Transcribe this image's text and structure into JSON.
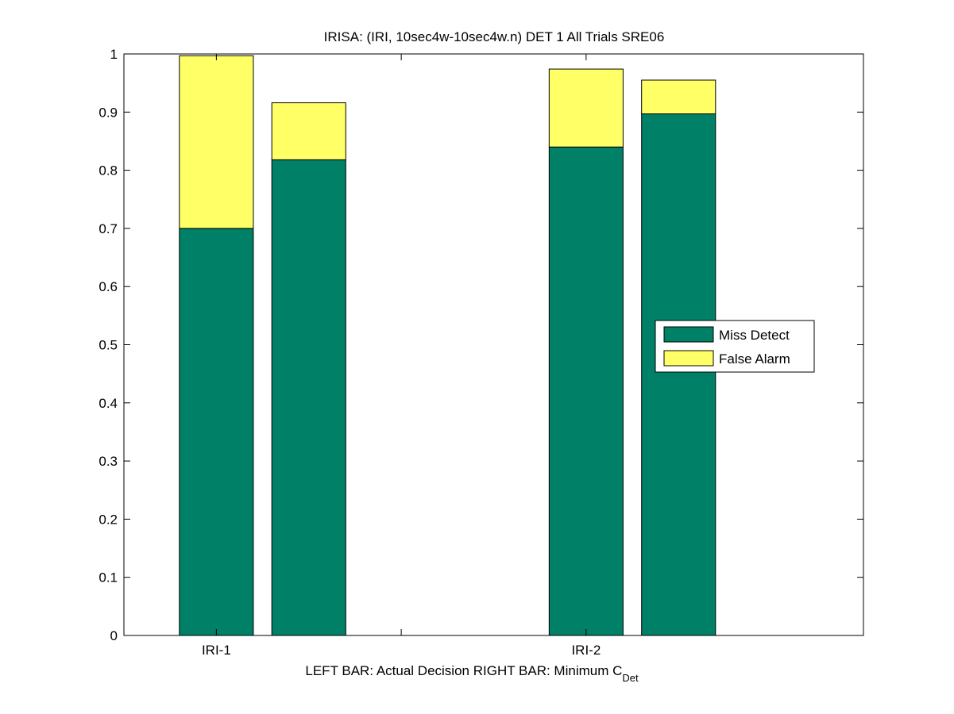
{
  "chart_data": {
    "type": "bar",
    "stacked": true,
    "title": "IRISA: (IRI, 10sec4w-10sec4w.n) DET 1 All Trials SRE06",
    "xlabel": {
      "main": "LEFT BAR: Actual Decision     RIGHT BAR: Minimum C",
      "subscript": "Det"
    },
    "ylabel": "",
    "ylim": [
      0,
      1
    ],
    "xlim": [
      0.5,
      4.5
    ],
    "yticks": [
      "0",
      "0.1",
      "0.2",
      "0.3",
      "0.4",
      "0.5",
      "0.6",
      "0.7",
      "0.8",
      "0.9",
      "1"
    ],
    "xticks": [
      1,
      2,
      3
    ],
    "categories": [
      "IRI-1",
      "IRI-2"
    ],
    "bars_per_category": [
      "Actual Decision",
      "Minimum C_Det"
    ],
    "series": [
      {
        "name": "Miss Detect",
        "color": "#008066",
        "values": [
          [
            0.7,
            0.818
          ],
          [
            0.84,
            0.897
          ]
        ]
      },
      {
        "name": "False Alarm",
        "color": "#ffff66",
        "values": [
          [
            0.297,
            0.098
          ],
          [
            0.134,
            0.058
          ]
        ]
      }
    ],
    "legend_position": "right",
    "grid": false
  }
}
